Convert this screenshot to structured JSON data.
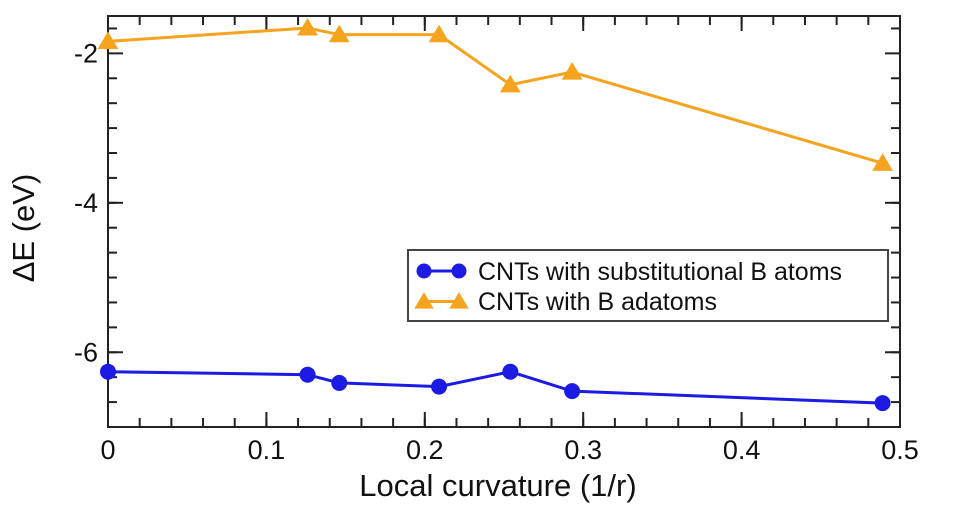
{
  "chart_data": {
    "type": "line",
    "title": "",
    "xlabel": "Local curvature (1/r)",
    "ylabel": "ΔE (eV)",
    "xlim": [
      0,
      0.5
    ],
    "ylim": [
      -7.0,
      -1.5
    ],
    "x_major_ticks": [
      0,
      0.1,
      0.2,
      0.3,
      0.4,
      0.5
    ],
    "x_tick_labels": [
      "0",
      "0.1",
      "0.2",
      "0.3",
      "0.4",
      "0.5"
    ],
    "x_minor_step": 0.02,
    "y_major_ticks": [
      -2,
      -4,
      -6
    ],
    "y_tick_labels": [
      "-2",
      "-4",
      "-6"
    ],
    "y_minor_step": 0.33333,
    "grid": false,
    "legend_position": "center-right",
    "axis_color": "#222222",
    "text_color": "#111111",
    "x": [
      0,
      0.126,
      0.146,
      0.209,
      0.254,
      0.293,
      0.489
    ],
    "series": [
      {
        "name": "CNTs with substitutional B atoms",
        "color": "#1b1be4",
        "marker": "circle",
        "values": [
          -6.26,
          -6.3,
          -6.41,
          -6.46,
          -6.26,
          -6.52,
          -6.68
        ]
      },
      {
        "name": "CNTs with B adatoms",
        "color": "#f6a41e",
        "marker": "triangle",
        "values": [
          -1.84,
          -1.66,
          -1.75,
          -1.75,
          -2.42,
          -2.25,
          -3.47
        ]
      }
    ]
  }
}
